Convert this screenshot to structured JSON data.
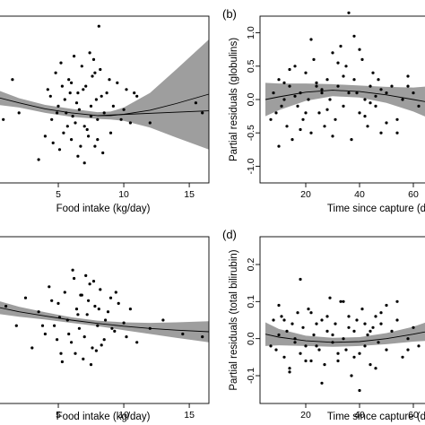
{
  "chart_data": [
    {
      "type": "scatter",
      "panel_letter": "",
      "xlabel": "Food intake (kg/day)",
      "ylabel": "",
      "xlim": [
        0,
        16.5
      ],
      "ylim": [
        -1.25,
        1.25
      ],
      "x_ticks": [
        "5",
        "10",
        "15"
      ],
      "x_tick_values": [
        5,
        10,
        15
      ],
      "y_ticks": [],
      "y_tick_values": [],
      "fit": {
        "x": [
          0,
          2,
          4,
          6,
          8,
          9,
          10,
          12,
          14,
          16.5
        ],
        "y": [
          0.05,
          -0.05,
          -0.14,
          -0.2,
          -0.24,
          -0.24,
          -0.22,
          -0.16,
          -0.06,
          0.08
        ]
      },
      "band": {
        "lower": [
          -0.07,
          -0.12,
          -0.2,
          -0.26,
          -0.29,
          -0.3,
          -0.32,
          -0.42,
          -0.57,
          -0.75
        ],
        "upper": [
          0.17,
          0.02,
          -0.08,
          -0.14,
          -0.19,
          -0.18,
          -0.12,
          0.1,
          0.45,
          0.9
        ]
      },
      "trend": {
        "x": [
          8,
          16.5
        ],
        "y": [
          -0.24,
          -0.17
        ]
      },
      "points": {
        "x": [
          0.3,
          0.8,
          1.5,
          2.0,
          3.5,
          4.0,
          4.2,
          4.5,
          4.8,
          5.0,
          5.2,
          5.4,
          5.5,
          5.6,
          5.8,
          6.0,
          6.2,
          6.3,
          6.5,
          6.6,
          6.8,
          7.0,
          7.1,
          7.3,
          7.5,
          7.6,
          7.8,
          7.9,
          8.0,
          8.2,
          8.5,
          8.7,
          9.0,
          9.5,
          10.0,
          10.5,
          11.0,
          6.1,
          6.4,
          6.9,
          7.2,
          7.4,
          5.3,
          4.6,
          8.4,
          8.9,
          5.7,
          6.7,
          7.7,
          8.1,
          9.2,
          10.2,
          12.0,
          4.4,
          5.1,
          6.0,
          7.0,
          7.5,
          8.3,
          7.8,
          8.0,
          6.5,
          5.9,
          4.9,
          9.8,
          10.8,
          15.5,
          16.0
        ],
        "y": [
          0.1,
          -0.3,
          0.3,
          -0.2,
          -0.9,
          -0.55,
          0.15,
          -0.3,
          0.4,
          -0.1,
          0.55,
          -0.5,
          0.0,
          -0.2,
          0.3,
          -0.6,
          0.65,
          -0.35,
          0.1,
          -0.15,
          0.5,
          -0.4,
          0.2,
          -0.55,
          -0.1,
          0.35,
          -0.7,
          0.0,
          -0.3,
          0.45,
          -0.2,
          0.1,
          -0.5,
          0.25,
          -0.15,
          -0.35,
          0.05,
          -0.25,
          -0.05,
          0.15,
          -0.45,
          0.7,
          0.2,
          -0.65,
          -0.8,
          0.3,
          -0.4,
          -0.7,
          0.6,
          1.1,
          -0.1,
          0.15,
          -0.35,
          0.05,
          -0.75,
          0.25,
          -0.95,
          -0.25,
          0.05,
          0.4,
          -0.6,
          -0.85,
          0.1,
          -0.2,
          -0.3,
          0.1,
          -0.05,
          -0.2
        ]
      }
    },
    {
      "type": "scatter",
      "panel_letter": "(b)",
      "xlabel": "Time since capture (d",
      "ylabel": "Partial residuals (globulins)",
      "xlim": [
        3,
        67
      ],
      "ylim": [
        -1.25,
        1.25
      ],
      "x_ticks": [
        "20",
        "40",
        "60"
      ],
      "x_tick_values": [
        20,
        40,
        60
      ],
      "y_ticks": [
        "1.0",
        "0.5",
        "0.0",
        "-0.5",
        "-1.0"
      ],
      "y_tick_values": [
        1.0,
        0.5,
        0.0,
        -0.5,
        -1.0
      ],
      "fit": {
        "x": [
          5,
          10,
          20,
          30,
          40,
          50,
          60,
          67
        ],
        "y": [
          0.0,
          0.04,
          0.11,
          0.14,
          0.12,
          0.07,
          0.0,
          -0.05
        ]
      },
      "band": {
        "lower": [
          -0.25,
          -0.16,
          -0.02,
          0.05,
          0.03,
          -0.05,
          -0.18,
          -0.3
        ],
        "upper": [
          0.25,
          0.24,
          0.24,
          0.23,
          0.21,
          0.19,
          0.18,
          0.2
        ]
      },
      "trend": null,
      "points": {
        "x": [
          7,
          8,
          9,
          10,
          11,
          12,
          13,
          14,
          15,
          16,
          17,
          18,
          19,
          20,
          21,
          22,
          23,
          24,
          25,
          26,
          27,
          28,
          29,
          30,
          31,
          32,
          33,
          34,
          35,
          36,
          37,
          38,
          39,
          40,
          41,
          42,
          43,
          44,
          45,
          46,
          47,
          48,
          50,
          52,
          54,
          56,
          58,
          60,
          62,
          10,
          14,
          18,
          22,
          26,
          30,
          34,
          38,
          42,
          46,
          50,
          24,
          28,
          32,
          36,
          40,
          44,
          48,
          20,
          16,
          12,
          54,
          58
        ],
        "y": [
          -0.3,
          0.1,
          -0.2,
          0.3,
          -0.1,
          0.0,
          -0.4,
          0.2,
          -0.6,
          0.5,
          -0.1,
          0.1,
          -0.3,
          0.4,
          0.0,
          -0.5,
          0.6,
          0.2,
          -0.2,
          0.1,
          -0.4,
          0.3,
          0.0,
          0.7,
          -0.3,
          0.2,
          0.8,
          -0.1,
          0.5,
          1.3,
          -0.6,
          0.3,
          0.1,
          -0.2,
          0.6,
          0.0,
          -0.4,
          0.2,
          0.4,
          -0.1,
          0.3,
          -0.5,
          0.1,
          0.2,
          -0.3,
          0.0,
          0.2,
          0.1,
          -0.1,
          -0.7,
          0.45,
          -0.45,
          0.9,
          0.15,
          -0.55,
          0.35,
          0.95,
          -0.25,
          0.05,
          -0.35,
          0.25,
          -0.15,
          0.55,
          0.1,
          0.75,
          -0.05,
          0.15,
          -0.2,
          0.05,
          0.25,
          -0.5,
          0.35
        ]
      }
    },
    {
      "type": "scatter",
      "panel_letter": "",
      "xlabel": "Food intake (kg/day)",
      "ylabel": "",
      "xlim": [
        0,
        16.5
      ],
      "ylim": [
        -0.3,
        0.3
      ],
      "x_ticks": [
        "5",
        "10",
        "15"
      ],
      "x_tick_values": [
        5,
        10,
        15
      ],
      "y_ticks": [],
      "y_tick_values": [],
      "fit": {
        "x": [
          0,
          2,
          4,
          6,
          8,
          10,
          12,
          14,
          16.5
        ],
        "y": [
          0.05,
          0.03,
          0.015,
          0.0,
          -0.012,
          -0.022,
          -0.03,
          -0.036,
          -0.042
        ]
      },
      "band": {
        "lower": [
          0.025,
          0.012,
          0.002,
          -0.01,
          -0.022,
          -0.036,
          -0.05,
          -0.064,
          -0.08
        ],
        "upper": [
          0.075,
          0.048,
          0.028,
          0.01,
          -0.002,
          -0.008,
          -0.01,
          -0.008,
          -0.004
        ]
      },
      "trend": null,
      "points": {
        "x": [
          0.3,
          1.0,
          1.8,
          2.5,
          3.0,
          3.5,
          4.0,
          4.3,
          4.7,
          5.0,
          5.2,
          5.5,
          5.7,
          6.0,
          6.2,
          6.4,
          6.6,
          6.8,
          7.0,
          7.2,
          7.4,
          7.6,
          7.8,
          8.0,
          8.2,
          8.5,
          8.8,
          9.0,
          9.3,
          9.6,
          10.0,
          10.5,
          11.0,
          12.0,
          13.0,
          14.5,
          16.0,
          5.3,
          6.1,
          6.9,
          7.7,
          8.3,
          4.5,
          5.8,
          6.5,
          7.1,
          7.9,
          8.6,
          9.4,
          10.2,
          5.1,
          6.3,
          7.3,
          8.1,
          3.8,
          4.9,
          6.7,
          7.5,
          9.1
        ],
        "y": [
          0.02,
          0.05,
          -0.02,
          0.08,
          -0.1,
          0.03,
          -0.05,
          0.12,
          -0.02,
          0.06,
          -0.12,
          0.1,
          0.0,
          -0.08,
          0.15,
          0.04,
          -0.03,
          0.09,
          -0.06,
          0.02,
          0.13,
          -0.1,
          0.05,
          -0.02,
          0.11,
          -0.07,
          0.03,
          0.08,
          -0.04,
          0.06,
          -0.01,
          0.04,
          -0.08,
          -0.03,
          0.0,
          -0.05,
          -0.06,
          -0.15,
          0.18,
          -0.14,
          0.14,
          -0.09,
          0.07,
          -0.05,
          0.02,
          0.16,
          -0.11,
          0.0,
          0.1,
          -0.06,
          0.01,
          -0.12,
          0.07,
          0.04,
          -0.02,
          -0.07,
          0.09,
          -0.16,
          -0.03
        ]
      }
    },
    {
      "type": "scatter",
      "panel_letter": "(d)",
      "xlabel": "Time since capture (d",
      "ylabel": "Partial residuals (total bilirubin)",
      "xlim": [
        3,
        67
      ],
      "ylim": [
        -0.175,
        0.275
      ],
      "x_ticks": [
        "20",
        "40",
        "60"
      ],
      "x_tick_values": [
        20,
        40,
        60
      ],
      "y_ticks": [
        "0.2",
        "0.1",
        "0.0",
        "-0.1"
      ],
      "y_tick_values": [
        0.2,
        0.1,
        0.0,
        -0.1
      ],
      "fit": {
        "x": [
          5,
          10,
          20,
          30,
          40,
          50,
          60,
          67
        ],
        "y": [
          0.012,
          0.004,
          -0.006,
          -0.01,
          -0.008,
          0.0,
          0.012,
          0.022
        ]
      },
      "band": {
        "lower": [
          -0.02,
          -0.018,
          -0.02,
          -0.022,
          -0.02,
          -0.015,
          -0.008,
          -0.005
        ],
        "upper": [
          0.044,
          0.026,
          0.008,
          0.002,
          0.004,
          0.015,
          0.032,
          0.05
        ]
      },
      "trend": null,
      "points": {
        "x": [
          7,
          8,
          9,
          10,
          11,
          12,
          13,
          14,
          15,
          16,
          17,
          18,
          19,
          20,
          21,
          22,
          23,
          24,
          25,
          26,
          27,
          28,
          29,
          30,
          31,
          32,
          33,
          34,
          35,
          36,
          37,
          38,
          39,
          40,
          41,
          42,
          43,
          44,
          45,
          46,
          47,
          48,
          50,
          52,
          54,
          56,
          58,
          60,
          62,
          10,
          14,
          18,
          22,
          26,
          30,
          34,
          38,
          42,
          46,
          50,
          24,
          28,
          32,
          36,
          40,
          44,
          48,
          20,
          16,
          12,
          54,
          58
        ],
        "y": [
          -0.02,
          0.05,
          -0.03,
          0.01,
          0.06,
          -0.05,
          0.02,
          -0.08,
          0.04,
          0.0,
          0.07,
          -0.04,
          0.03,
          -0.02,
          0.08,
          -0.06,
          0.01,
          0.04,
          -0.03,
          0.05,
          -0.07,
          0.02,
          0.11,
          -0.01,
          0.04,
          -0.06,
          0.1,
          0.0,
          -0.03,
          0.06,
          -0.1,
          0.02,
          0.05,
          -0.04,
          0.08,
          -0.02,
          0.01,
          -0.07,
          0.03,
          0.06,
          -0.01,
          0.04,
          -0.03,
          0.02,
          0.05,
          -0.05,
          0.0,
          0.03,
          -0.02,
          0.09,
          -0.09,
          0.16,
          0.07,
          -0.12,
          0.01,
          0.1,
          -0.05,
          0.04,
          -0.08,
          0.09,
          -0.02,
          0.06,
          -0.04,
          0.03,
          -0.14,
          0.02,
          0.07,
          -0.06,
          -0.01,
          0.05,
          0.1,
          -0.03
        ]
      }
    }
  ]
}
